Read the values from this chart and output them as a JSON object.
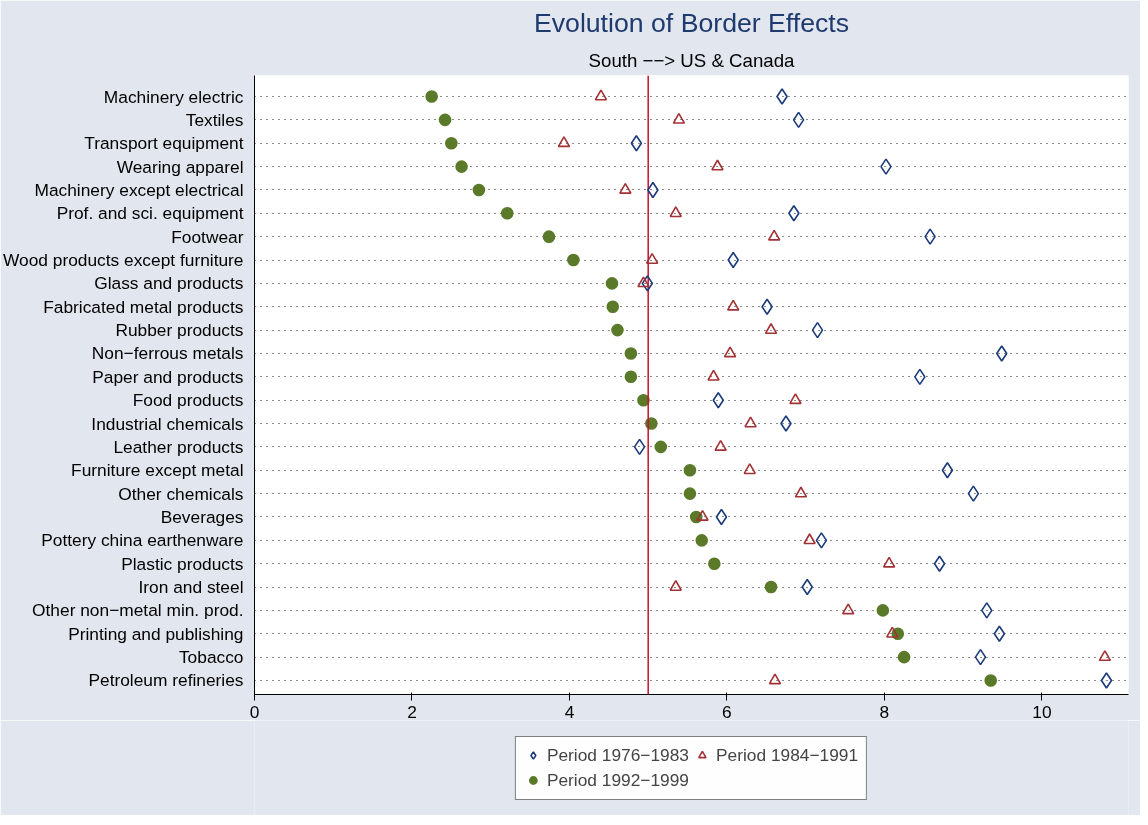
{
  "chart_data": {
    "type": "scatter",
    "orientation": "horizontal",
    "title": "Evolution of Border Effects",
    "subtitle": "South −−> US & Canada",
    "categories": [
      "Machinery electric",
      "Textiles",
      "Transport equipment",
      "Wearing apparel",
      "Machinery except electrical",
      "Prof. and sci. equipment",
      "Footwear",
      "Wood products except furniture",
      "Glass and products",
      "Fabricated metal products",
      "Rubber products",
      "Non−ferrous metals",
      "Paper and products",
      "Food products",
      "Industrial chemicals",
      "Leather products",
      "Furniture except metal",
      "Other chemicals",
      "Beverages",
      "Pottery china earthenware",
      "Plastic products",
      "Iron and steel",
      "Other non−metal min. prod.",
      "Printing and publishing",
      "Tobacco",
      "Petroleum refineries"
    ],
    "series": [
      {
        "name": "Period 1976−1983",
        "color": "#1a3a7a",
        "marker": "diamond",
        "values": [
          6.7,
          6.91,
          4.85,
          8.02,
          5.06,
          6.85,
          8.58,
          6.08,
          4.99,
          6.51,
          7.15,
          9.49,
          8.45,
          5.89,
          6.75,
          4.89,
          8.8,
          9.13,
          5.93,
          7.2,
          8.7,
          7.02,
          9.3,
          9.46,
          9.22,
          10.82
        ]
      },
      {
        "name": "Period 1984−1991",
        "color": "#a33234",
        "marker": "triangle",
        "values": [
          4.4,
          5.39,
          3.93,
          5.88,
          4.71,
          5.35,
          6.6,
          5.05,
          4.94,
          6.08,
          6.56,
          6.04,
          5.83,
          6.87,
          6.3,
          5.92,
          6.29,
          6.94,
          5.69,
          7.05,
          8.06,
          5.35,
          7.54,
          8.1,
          10.8,
          6.61
        ]
      },
      {
        "name": "Period 1992−1999",
        "color": "#5a7a2a",
        "marker": "circle",
        "values": [
          2.25,
          2.42,
          2.5,
          2.63,
          2.85,
          3.21,
          3.74,
          4.05,
          4.54,
          4.55,
          4.61,
          4.78,
          4.78,
          4.94,
          5.04,
          5.16,
          5.53,
          5.53,
          5.61,
          5.68,
          5.84,
          6.56,
          7.98,
          8.17,
          8.25,
          9.35
        ]
      }
    ],
    "xlim": [
      0,
      11.1
    ],
    "xticks": [
      0,
      2,
      4,
      6,
      8,
      10
    ],
    "ref_lines": [
      {
        "axis": "x",
        "value": 5,
        "color": "#c8102e"
      }
    ],
    "grid": "y",
    "legend": "bottom"
  }
}
